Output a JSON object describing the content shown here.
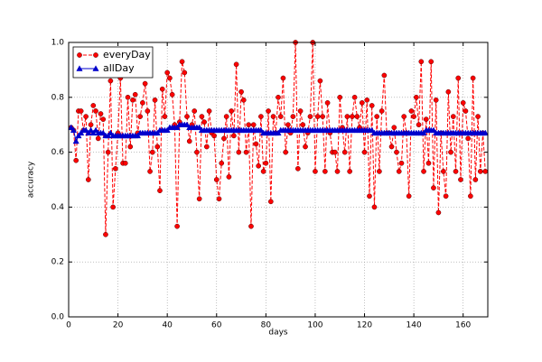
{
  "chart_data": {
    "type": "line",
    "xlabel": "days",
    "ylabel": "accuracy",
    "xlim": [
      0,
      170
    ],
    "xticks": [
      0,
      20,
      40,
      60,
      80,
      100,
      120,
      140,
      160
    ],
    "ylim": [
      0,
      1
    ],
    "yticks": [
      {
        "value": 0,
        "label": "0.0"
      },
      0.2,
      0.4,
      0.6,
      0.8,
      {
        "value": 1,
        "label": "1.0"
      }
    ],
    "grid": true,
    "legend": "upper-left",
    "x": [
      1,
      2,
      3,
      4,
      5,
      6,
      7,
      8,
      9,
      10,
      11,
      12,
      13,
      14,
      15,
      16,
      17,
      18,
      19,
      20,
      21,
      22,
      23,
      24,
      25,
      26,
      27,
      28,
      29,
      30,
      31,
      32,
      33,
      34,
      35,
      36,
      37,
      38,
      39,
      40,
      41,
      42,
      43,
      44,
      45,
      46,
      47,
      48,
      49,
      50,
      51,
      52,
      53,
      54,
      55,
      56,
      57,
      58,
      59,
      60,
      61,
      62,
      63,
      64,
      65,
      66,
      67,
      68,
      69,
      70,
      71,
      72,
      73,
      74,
      75,
      76,
      77,
      78,
      79,
      80,
      81,
      82,
      83,
      84,
      85,
      86,
      87,
      88,
      89,
      90,
      91,
      92,
      93,
      94,
      95,
      96,
      97,
      98,
      99,
      100,
      101,
      102,
      103,
      104,
      105,
      106,
      107,
      108,
      109,
      110,
      111,
      112,
      113,
      114,
      115,
      116,
      117,
      118,
      119,
      120,
      121,
      122,
      123,
      124,
      125,
      126,
      127,
      128,
      129,
      130,
      131,
      132,
      133,
      134,
      135,
      136,
      137,
      138,
      139,
      140,
      141,
      142,
      143,
      144,
      145,
      146,
      147,
      148,
      149,
      150,
      151,
      152,
      153,
      154,
      155,
      156,
      157,
      158,
      159,
      160,
      161,
      162,
      163,
      164,
      165,
      166,
      167,
      168,
      169
    ],
    "series": [
      {
        "name": "everyDay",
        "color": "#ff0000",
        "marker": "circle",
        "linestyle": "dashed",
        "values": [
          0.69,
          0.68,
          0.57,
          0.75,
          0.75,
          0.68,
          0.73,
          0.5,
          0.7,
          0.77,
          0.75,
          0.65,
          0.74,
          0.72,
          0.3,
          0.6,
          0.86,
          0.4,
          0.54,
          0.67,
          0.87,
          0.56,
          0.56,
          0.8,
          0.62,
          0.79,
          0.81,
          0.67,
          0.73,
          0.78,
          0.85,
          0.75,
          0.53,
          0.6,
          0.79,
          0.62,
          0.46,
          0.83,
          0.73,
          0.89,
          0.87,
          0.81,
          0.7,
          0.33,
          0.71,
          0.93,
          0.89,
          0.73,
          0.64,
          0.7,
          0.75,
          0.6,
          0.43,
          0.73,
          0.71,
          0.62,
          0.75,
          0.67,
          0.66,
          0.5,
          0.43,
          0.56,
          0.65,
          0.73,
          0.51,
          0.75,
          0.66,
          0.92,
          0.6,
          0.82,
          0.79,
          0.6,
          0.7,
          0.33,
          0.7,
          0.63,
          0.55,
          0.73,
          0.53,
          0.56,
          0.75,
          0.42,
          0.73,
          0.67,
          0.8,
          0.73,
          0.87,
          0.6,
          0.7,
          0.67,
          0.73,
          1.0,
          0.54,
          0.75,
          0.7,
          0.62,
          0.67,
          0.73,
          1.0,
          0.53,
          0.73,
          0.86,
          0.73,
          0.53,
          0.78,
          0.67,
          0.6,
          0.6,
          0.53,
          0.8,
          0.69,
          0.6,
          0.73,
          0.53,
          0.73,
          0.8,
          0.73,
          0.69,
          0.78,
          0.6,
          0.79,
          0.44,
          0.77,
          0.4,
          0.73,
          0.53,
          0.75,
          0.88,
          0.67,
          0.67,
          0.62,
          0.69,
          0.6,
          0.53,
          0.56,
          0.73,
          0.67,
          0.44,
          0.75,
          0.73,
          0.8,
          0.7,
          0.93,
          0.53,
          0.72,
          0.56,
          0.93,
          0.47,
          0.79,
          0.38,
          0.67,
          0.53,
          0.44,
          0.82,
          0.6,
          0.73,
          0.53,
          0.87,
          0.5,
          0.78,
          0.75,
          0.65,
          0.44,
          0.87,
          0.5,
          0.73,
          0.53,
          0.67,
          0.53
        ]
      },
      {
        "name": "allDay",
        "color": "#0000cc",
        "marker": "triangle",
        "linestyle": "solid",
        "values": [
          0.69,
          0.68,
          0.64,
          0.66,
          0.67,
          0.68,
          0.68,
          0.67,
          0.68,
          0.67,
          0.68,
          0.67,
          0.67,
          0.67,
          0.66,
          0.66,
          0.67,
          0.66,
          0.66,
          0.66,
          0.66,
          0.66,
          0.66,
          0.66,
          0.66,
          0.66,
          0.66,
          0.66,
          0.67,
          0.67,
          0.67,
          0.67,
          0.67,
          0.67,
          0.67,
          0.67,
          0.68,
          0.68,
          0.68,
          0.68,
          0.69,
          0.69,
          0.69,
          0.69,
          0.7,
          0.7,
          0.7,
          0.7,
          0.69,
          0.69,
          0.69,
          0.69,
          0.69,
          0.68,
          0.68,
          0.68,
          0.68,
          0.68,
          0.68,
          0.68,
          0.68,
          0.68,
          0.68,
          0.68,
          0.68,
          0.68,
          0.68,
          0.68,
          0.68,
          0.68,
          0.68,
          0.68,
          0.68,
          0.68,
          0.68,
          0.68,
          0.68,
          0.68,
          0.67,
          0.67,
          0.67,
          0.67,
          0.67,
          0.67,
          0.67,
          0.68,
          0.68,
          0.68,
          0.68,
          0.68,
          0.68,
          0.68,
          0.68,
          0.68,
          0.68,
          0.68,
          0.68,
          0.68,
          0.68,
          0.68,
          0.68,
          0.68,
          0.68,
          0.68,
          0.68,
          0.68,
          0.68,
          0.68,
          0.68,
          0.68,
          0.68,
          0.68,
          0.68,
          0.68,
          0.68,
          0.68,
          0.68,
          0.68,
          0.68,
          0.68,
          0.68,
          0.68,
          0.68,
          0.67,
          0.67,
          0.67,
          0.67,
          0.67,
          0.67,
          0.67,
          0.67,
          0.67,
          0.67,
          0.67,
          0.67,
          0.67,
          0.67,
          0.67,
          0.67,
          0.67,
          0.67,
          0.67,
          0.67,
          0.67,
          0.68,
          0.68,
          0.68,
          0.68,
          0.67,
          0.67,
          0.67,
          0.67,
          0.67,
          0.67,
          0.67,
          0.67,
          0.67,
          0.67,
          0.67,
          0.67,
          0.67,
          0.67,
          0.67,
          0.67,
          0.67,
          0.67,
          0.67,
          0.67,
          0.67
        ]
      }
    ]
  }
}
